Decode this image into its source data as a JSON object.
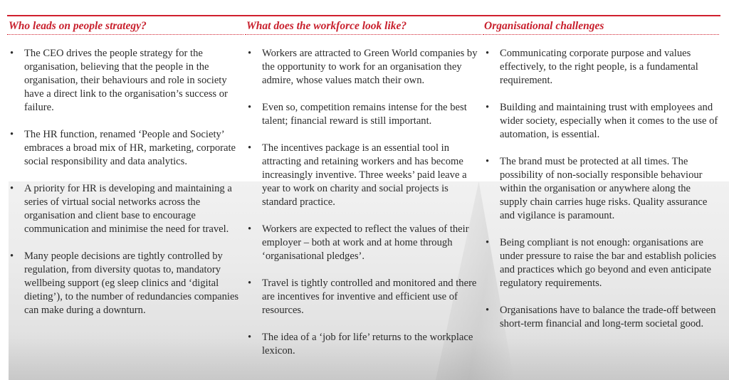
{
  "colors": {
    "accent": "#d0202e"
  },
  "columns": [
    {
      "heading": "Who leads on people strategy?",
      "items": [
        "The CEO drives the people strategy for the organisation, believing that the people in the organisation, their behaviours and role in society have a direct link to the organisation’s success or failure.",
        "The HR function, renamed ‘People and Society’ embraces a broad mix of HR, marketing, corporate social responsibility and data analytics.",
        "A priority for HR is developing and maintaining a series of virtual social networks across the organisation and client base to encourage communication and minimise the need for travel.",
        "Many people decisions are tightly controlled by regulation, from diversity quotas to, mandatory wellbeing support (eg sleep clinics and ‘digital dieting’), to the number of redundancies companies can make during a downturn."
      ]
    },
    {
      "heading": "What does the workforce look like?",
      "items": [
        "Workers are attracted to Green World companies by the opportunity to work for an organisation they admire, whose values match their own.",
        "Even so, competition remains intense for the best talent; financial reward is still important.",
        "The incentives package is an essential tool in attracting and retaining workers and has become increasingly inventive. Three weeks’ paid leave a year to work on charity and social projects is standard practice.",
        "Workers are expected to reflect the values of their employer – both at work and at home through ‘organisational pledges’.",
        "Travel is tightly controlled and monitored and there are incentives for inventive and efficient use of resources.",
        "The idea of a ‘job for life’ returns to the workplace lexicon."
      ]
    },
    {
      "heading": "Organisational challenges",
      "items": [
        "Communicating corporate purpose and values effectively, to the right people, is a fundamental requirement.",
        "Building and maintaining trust with employees and wider society, especially when it comes to the use of automation, is essential.",
        "The brand must be protected at all times. The possibility of non-socially responsible behaviour within the organisation or anywhere along the supply chain carries huge risks. Quality assurance and vigilance is paramount.",
        "Being compliant is not enough: organisations are under pressure to raise the bar and establish policies and practices which go beyond and even anticipate regulatory requirements.",
        "Organisations have to balance the trade-off between short-term financial and long-term societal good."
      ]
    }
  ]
}
